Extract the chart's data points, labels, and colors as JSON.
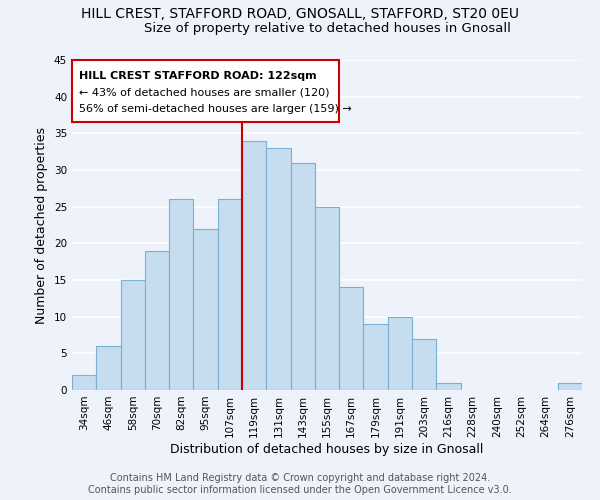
{
  "title": "HILL CREST, STAFFORD ROAD, GNOSALL, STAFFORD, ST20 0EU",
  "subtitle": "Size of property relative to detached houses in Gnosall",
  "xlabel": "Distribution of detached houses by size in Gnosall",
  "ylabel": "Number of detached properties",
  "bar_labels": [
    "34sqm",
    "46sqm",
    "58sqm",
    "70sqm",
    "82sqm",
    "95sqm",
    "107sqm",
    "119sqm",
    "131sqm",
    "143sqm",
    "155sqm",
    "167sqm",
    "179sqm",
    "191sqm",
    "203sqm",
    "216sqm",
    "228sqm",
    "240sqm",
    "252sqm",
    "264sqm",
    "276sqm"
  ],
  "bar_values": [
    2,
    6,
    15,
    19,
    26,
    22,
    26,
    34,
    33,
    31,
    25,
    14,
    9,
    10,
    7,
    1,
    0,
    0,
    0,
    0,
    1
  ],
  "bar_color": "#c6dcef",
  "bar_edge_color": "#7ab0d4",
  "highlight_index": 7,
  "highlight_line_color": "#cc0000",
  "annotation_title": "HILL CREST STAFFORD ROAD: 122sqm",
  "annotation_line1": "← 43% of detached houses are smaller (120)",
  "annotation_line2": "56% of semi-detached houses are larger (159) →",
  "annotation_box_color": "#ffffff",
  "annotation_box_edge_color": "#cc0000",
  "ylim": [
    0,
    45
  ],
  "yticks": [
    0,
    5,
    10,
    15,
    20,
    25,
    30,
    35,
    40,
    45
  ],
  "footer_line1": "Contains HM Land Registry data © Crown copyright and database right 2024.",
  "footer_line2": "Contains public sector information licensed under the Open Government Licence v3.0.",
  "background_color": "#eef2fb",
  "grid_color": "#ffffff",
  "title_fontsize": 10,
  "subtitle_fontsize": 9.5,
  "axis_label_fontsize": 9,
  "tick_fontsize": 7.5,
  "footer_fontsize": 7,
  "annotation_fontsize": 8
}
